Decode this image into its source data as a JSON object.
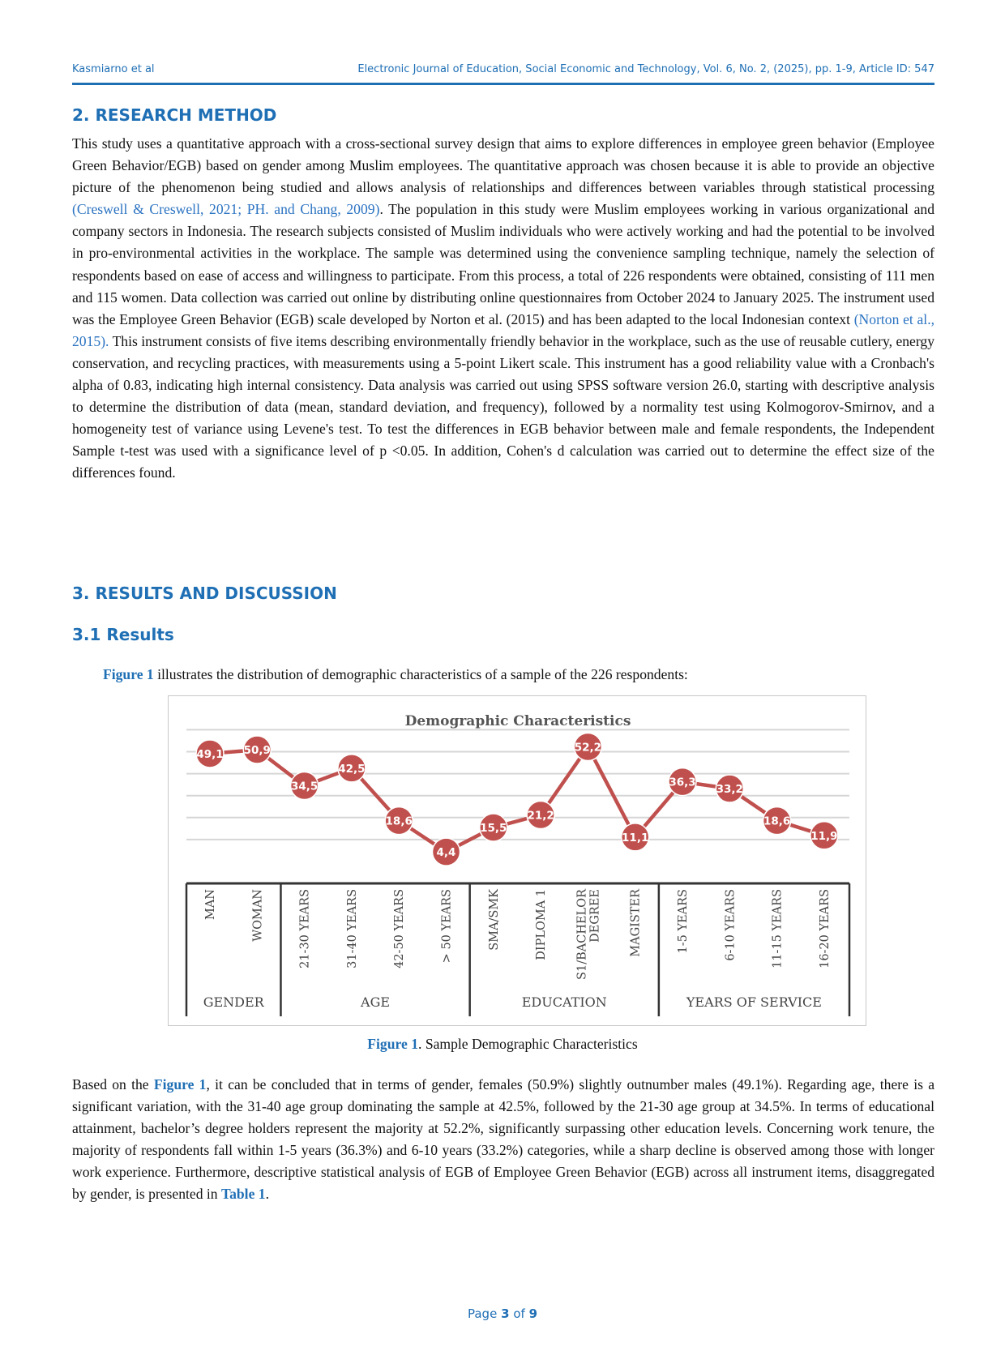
{
  "header": {
    "authors": "Kasmiarno et al",
    "journal": "Electronic Journal of Education, Social Economic and Technology, Vol. 6, No. 2, (2025), pp. 1-9, Article ID: 547"
  },
  "section2": {
    "heading": "2. RESEARCH METHOD",
    "p1_a": "This study uses a quantitative approach with a cross-sectional survey design that aims to explore differences in employee green behavior (Employee Green Behavior/EGB) based on gender among Muslim employees. The quantitative approach was chosen because it is able to provide an objective picture of the phenomenon being studied and allows analysis of relationships and differences between variables through statistical processing ",
    "cite1": "(Creswell & Creswell, 2021; PH. and Chang, 2009)",
    "p1_b": ". The population in this study were Muslim employees working in various organizational and company sectors in Indonesia. The research subjects consisted of Muslim individuals who were actively working and had the potential to be involved in pro-environmental activities in the workplace. The sample was determined using the convenience sampling technique, namely the selection of respondents based on ease of access and willingness to participate. From this process, a total of 226 respondents were obtained, consisting of 111 men and 115 women. Data collection was carried out online by distributing online questionnaires from October 2024 to January 2025. The instrument used was the Employee Green Behavior (EGB) scale developed by Norton et al. (2015) and has been adapted to the local Indonesian context ",
    "cite2": "(Norton et al., 2015).",
    "p1_c": " This instrument consists of five items describing environmentally friendly behavior in the workplace, such as the use of reusable cutlery, energy conservation, and recycling practices, with measurements using a 5-point Likert scale. This instrument has a good reliability value with a Cronbach's alpha of 0.83, indicating high internal consistency. Data analysis was carried out using SPSS software version 26.0, starting with descriptive analysis to determine the distribution of data (mean, standard deviation, and frequency), followed by a normality test using Kolmogorov-Smirnov, and a homogeneity test of variance using Levene's test. To test the differences in EGB behavior between male and female respondents, the Independent Sample t-test was used with a significance level of p <0.05. In addition, Cohen's d calculation was carried out to determine the effect size of the differences found."
  },
  "section3": {
    "heading": "3. RESULTS AND DISCUSSION",
    "subheading": "3.1 Results",
    "intro_ref": "Figure 1",
    "intro_text": " illustrates the distribution of demographic characteristics of a sample of the 226 respondents:",
    "caption_ref": "Figure 1",
    "caption_text": ". Sample Demographic Characteristics",
    "p2_a": "Based on the ",
    "p2_ref1": "Figure 1",
    "p2_b": ", it can be concluded that in terms of gender, females (50.9%) slightly outnumber males (49.1%). Regarding age, there is a significant variation, with the 31-40 age group dominating the sample at 42.5%, followed by the 21-30 age group at 34.5%. In terms of educational attainment, bachelor’s degree holders represent the majority at 52.2%, significantly surpassing other education levels. Concerning work tenure, the majority of respondents fall within 1-5 years (36.3%) and 6-10 years (33.2%) categories, while a sharp decline is observed among those with longer work experience. Furthermore, descriptive statistical analysis of EGB of Employee Green Behavior (EGB) across all instrument items, disaggregated by gender, is presented in ",
    "p2_ref2": "Table 1",
    "p2_c": "."
  },
  "chart_data": {
    "type": "line",
    "title": "Demographic Characteristics",
    "categories": [
      "MAN",
      "WOMAN",
      "21-30 YEARS",
      "31-40 YEARS",
      "42-50 YEARS",
      "> 50 YEARS",
      "SMA/SMK",
      "DIPLOMA 1",
      "S1/BACHELOR DEGREE",
      "MAGISTER",
      "1-5 YEARS",
      "6-10 YEARS",
      "11-15 YEARS",
      "16-20 YEARS"
    ],
    "values": [
      49.1,
      50.9,
      34.5,
      42.5,
      18.6,
      4.4,
      15.5,
      21.2,
      52.2,
      11.1,
      36.3,
      33.2,
      18.6,
      11.9
    ],
    "value_labels": [
      "49,1",
      "50,9",
      "34,5",
      "42,5",
      "18,6",
      "4,4",
      "15,5",
      "21,2",
      "52,2",
      "11,1",
      "36,3",
      "33,2",
      "18,6",
      "11,9"
    ],
    "groups": [
      {
        "label": "GENDER",
        "count": 2
      },
      {
        "label": "AGE",
        "count": 4
      },
      {
        "label": "EDUCATION",
        "count": 4
      },
      {
        "label": "YEARS OF SERVICE",
        "count": 4
      }
    ],
    "ylim": [
      0,
      60
    ],
    "grid": true,
    "legend": "none",
    "color": "#c0504d"
  },
  "footer": {
    "page_word": "Page",
    "page_num": "3",
    "of_word": "of",
    "total": "9"
  }
}
